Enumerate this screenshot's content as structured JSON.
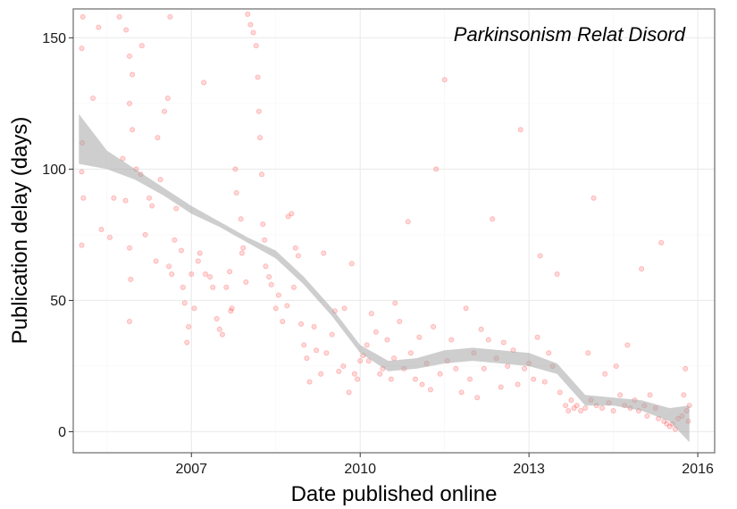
{
  "chart_data": {
    "type": "scatter",
    "title": "",
    "annotation": "Parkinsonism Relat Disord",
    "xlabel": "Date published online",
    "ylabel": "Publication delay (days)",
    "xlim": [
      2004.9,
      2016.3
    ],
    "ylim": [
      -8,
      161
    ],
    "x_ticks": [
      2007,
      2010,
      2013,
      2016
    ],
    "y_ticks": [
      0,
      50,
      100,
      150
    ],
    "grid": true,
    "point_color": "#ff0000",
    "point_opacity": 0.15,
    "smooth_fill_color": "#a6a6a6",
    "smooth_band": {
      "x": [
        2005.0,
        2005.5,
        2006.0,
        2006.5,
        2007.0,
        2007.5,
        2008.0,
        2008.5,
        2009.0,
        2009.5,
        2010.0,
        2010.5,
        2011.0,
        2011.5,
        2012.0,
        2012.5,
        2013.0,
        2013.5,
        2014.0,
        2014.5,
        2015.0,
        2015.5,
        2015.85
      ],
      "lower": [
        102,
        100,
        96,
        90,
        83,
        78,
        72,
        66,
        56,
        44,
        30,
        23,
        24,
        26,
        27,
        26,
        25,
        22,
        10,
        10,
        8,
        4,
        -4
      ],
      "upper": [
        121,
        107,
        100,
        93,
        86,
        80,
        74,
        69,
        59,
        47,
        33,
        27,
        28,
        31,
        32,
        31,
        30,
        26,
        14,
        13,
        12,
        9,
        10
      ]
    },
    "points": [
      [
        2005.07,
        158
      ],
      [
        2005.05,
        146
      ],
      [
        2005.25,
        127
      ],
      [
        2005.06,
        110
      ],
      [
        2005.05,
        99
      ],
      [
        2005.08,
        89
      ],
      [
        2005.05,
        71
      ],
      [
        2005.35,
        154
      ],
      [
        2005.4,
        77
      ],
      [
        2005.55,
        74
      ],
      [
        2005.62,
        89
      ],
      [
        2005.72,
        158
      ],
      [
        2005.84,
        153
      ],
      [
        2005.9,
        143
      ],
      [
        2005.95,
        136
      ],
      [
        2005.9,
        125
      ],
      [
        2005.95,
        115
      ],
      [
        2005.78,
        104
      ],
      [
        2005.83,
        88
      ],
      [
        2005.9,
        70
      ],
      [
        2005.92,
        58
      ],
      [
        2005.9,
        42
      ],
      [
        2006.02,
        100
      ],
      [
        2006.1,
        98
      ],
      [
        2006.12,
        147
      ],
      [
        2006.18,
        75
      ],
      [
        2006.25,
        89
      ],
      [
        2006.3,
        86
      ],
      [
        2006.37,
        65
      ],
      [
        2006.4,
        112
      ],
      [
        2006.45,
        96
      ],
      [
        2006.52,
        122
      ],
      [
        2006.58,
        127
      ],
      [
        2006.62,
        158
      ],
      [
        2006.6,
        63
      ],
      [
        2006.65,
        60
      ],
      [
        2006.7,
        73
      ],
      [
        2006.73,
        85
      ],
      [
        2006.82,
        69
      ],
      [
        2006.85,
        55
      ],
      [
        2006.88,
        49
      ],
      [
        2006.92,
        34
      ],
      [
        2006.95,
        40
      ],
      [
        2007.0,
        60
      ],
      [
        2007.05,
        47
      ],
      [
        2007.12,
        65
      ],
      [
        2007.15,
        68
      ],
      [
        2007.22,
        133
      ],
      [
        2007.25,
        60
      ],
      [
        2007.33,
        59
      ],
      [
        2007.38,
        55
      ],
      [
        2007.45,
        43
      ],
      [
        2007.5,
        39
      ],
      [
        2007.55,
        37
      ],
      [
        2007.62,
        55
      ],
      [
        2007.68,
        61
      ],
      [
        2007.7,
        46
      ],
      [
        2007.72,
        47
      ],
      [
        2007.78,
        100
      ],
      [
        2007.8,
        91
      ],
      [
        2007.88,
        81
      ],
      [
        2007.9,
        68
      ],
      [
        2007.92,
        70
      ],
      [
        2007.97,
        57
      ],
      [
        2008.0,
        159
      ],
      [
        2008.05,
        155
      ],
      [
        2008.1,
        152
      ],
      [
        2008.15,
        147
      ],
      [
        2008.18,
        135
      ],
      [
        2008.2,
        122
      ],
      [
        2008.22,
        112
      ],
      [
        2008.25,
        98
      ],
      [
        2008.27,
        79
      ],
      [
        2008.3,
        73
      ],
      [
        2008.32,
        63
      ],
      [
        2008.38,
        59
      ],
      [
        2008.42,
        56
      ],
      [
        2008.5,
        47
      ],
      [
        2008.55,
        52
      ],
      [
        2008.62,
        42
      ],
      [
        2008.7,
        48
      ],
      [
        2008.72,
        82
      ],
      [
        2008.78,
        83
      ],
      [
        2008.82,
        55
      ],
      [
        2008.85,
        70
      ],
      [
        2008.9,
        67
      ],
      [
        2008.95,
        41
      ],
      [
        2009.0,
        33
      ],
      [
        2009.05,
        28
      ],
      [
        2009.1,
        19
      ],
      [
        2009.18,
        40
      ],
      [
        2009.22,
        31
      ],
      [
        2009.3,
        22
      ],
      [
        2009.35,
        68
      ],
      [
        2009.4,
        30
      ],
      [
        2009.5,
        37
      ],
      [
        2009.55,
        46
      ],
      [
        2009.62,
        23
      ],
      [
        2009.7,
        25
      ],
      [
        2009.72,
        47
      ],
      [
        2009.8,
        15
      ],
      [
        2009.85,
        64
      ],
      [
        2009.9,
        22
      ],
      [
        2009.95,
        20
      ],
      [
        2010.0,
        27
      ],
      [
        2010.05,
        29
      ],
      [
        2010.12,
        33
      ],
      [
        2010.15,
        27
      ],
      [
        2010.2,
        45
      ],
      [
        2010.28,
        38
      ],
      [
        2010.35,
        22
      ],
      [
        2010.4,
        24
      ],
      [
        2010.48,
        35
      ],
      [
        2010.55,
        20
      ],
      [
        2010.6,
        28
      ],
      [
        2010.62,
        49
      ],
      [
        2010.7,
        42
      ],
      [
        2010.78,
        24
      ],
      [
        2010.85,
        80
      ],
      [
        2010.9,
        30
      ],
      [
        2010.98,
        20
      ],
      [
        2011.05,
        36
      ],
      [
        2011.1,
        18
      ],
      [
        2011.18,
        26
      ],
      [
        2011.25,
        16
      ],
      [
        2011.3,
        40
      ],
      [
        2011.35,
        100
      ],
      [
        2011.42,
        22
      ],
      [
        2011.5,
        134
      ],
      [
        2011.55,
        27
      ],
      [
        2011.62,
        35
      ],
      [
        2011.7,
        24
      ],
      [
        2011.8,
        15
      ],
      [
        2011.88,
        47
      ],
      [
        2011.95,
        20
      ],
      [
        2012.02,
        30
      ],
      [
        2012.08,
        13
      ],
      [
        2012.15,
        39
      ],
      [
        2012.2,
        24
      ],
      [
        2012.28,
        35
      ],
      [
        2012.35,
        81
      ],
      [
        2012.42,
        28
      ],
      [
        2012.5,
        17
      ],
      [
        2012.55,
        34
      ],
      [
        2012.62,
        25
      ],
      [
        2012.72,
        31
      ],
      [
        2012.8,
        18
      ],
      [
        2012.85,
        115
      ],
      [
        2012.92,
        24
      ],
      [
        2013.0,
        26
      ],
      [
        2013.08,
        20
      ],
      [
        2013.15,
        36
      ],
      [
        2013.2,
        67
      ],
      [
        2013.28,
        19
      ],
      [
        2013.35,
        30
      ],
      [
        2013.42,
        25
      ],
      [
        2013.5,
        60
      ],
      [
        2013.55,
        15
      ],
      [
        2013.65,
        10
      ],
      [
        2013.7,
        8
      ],
      [
        2013.75,
        12
      ],
      [
        2013.8,
        9
      ],
      [
        2013.85,
        10
      ],
      [
        2013.92,
        8
      ],
      [
        2014.0,
        9
      ],
      [
        2014.05,
        30
      ],
      [
        2014.1,
        12
      ],
      [
        2014.15,
        89
      ],
      [
        2014.2,
        10
      ],
      [
        2014.3,
        9
      ],
      [
        2014.35,
        22
      ],
      [
        2014.42,
        11
      ],
      [
        2014.5,
        8
      ],
      [
        2014.55,
        25
      ],
      [
        2014.62,
        14
      ],
      [
        2014.7,
        10
      ],
      [
        2014.75,
        33
      ],
      [
        2014.8,
        9
      ],
      [
        2014.88,
        12
      ],
      [
        2014.95,
        8
      ],
      [
        2015.0,
        62
      ],
      [
        2015.05,
        10
      ],
      [
        2015.1,
        6
      ],
      [
        2015.15,
        14
      ],
      [
        2015.25,
        9
      ],
      [
        2015.3,
        5
      ],
      [
        2015.35,
        72
      ],
      [
        2015.4,
        4
      ],
      [
        2015.45,
        3
      ],
      [
        2015.5,
        2
      ],
      [
        2015.55,
        3
      ],
      [
        2015.6,
        1
      ],
      [
        2015.65,
        5
      ],
      [
        2015.72,
        6
      ],
      [
        2015.75,
        14
      ],
      [
        2015.78,
        24
      ],
      [
        2015.8,
        8
      ],
      [
        2015.83,
        4
      ],
      [
        2015.85,
        10
      ]
    ]
  }
}
